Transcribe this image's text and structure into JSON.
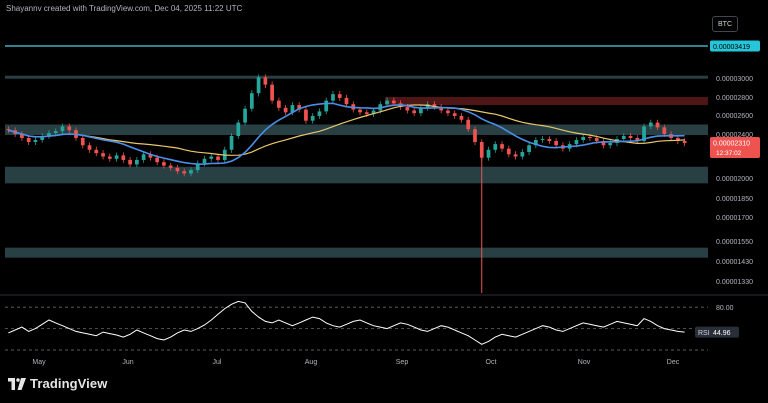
{
  "attribution": "Shayannv created with TradingView.com, Dec 04, 2025 11:22 UTC",
  "symbol": "BTC",
  "brand": {
    "name": "TradingView",
    "icon": "tradingview-logo-icon"
  },
  "colors": {
    "up": "#26a69a",
    "down": "#ef5350",
    "ma_fast": "#4a8fe8",
    "ma_slow": "#e8c66a",
    "resistance_line": "#4dd0e1",
    "zone": "#2f4a50",
    "supply_zone": "#5c1a1a",
    "rsi": "#ffffff",
    "last_price_bg": "#ef5350",
    "resistance_label_bg": "#26c6da"
  },
  "chart_data": [
    {
      "type": "candlestick",
      "x_labels": [
        "May",
        "Jun",
        "Jul",
        "Aug",
        "Sep",
        "Oct",
        "Nov",
        "Dec"
      ],
      "y_ticks": [
        "0.00003000",
        "0.00002800",
        "0.00002600",
        "0.00002400",
        "0.00002000",
        "0.00001850",
        "0.00001700",
        "0.00001550",
        "0.00001430",
        "0.00001330"
      ],
      "resistance_level": "0.00003419",
      "last_price": "0.00002310",
      "countdown": "12:37:02",
      "ohlc_close_sampled": [
        2.44e-05,
        2.4e-05,
        2.36e-05,
        2.32e-05,
        2.34e-05,
        2.38e-05,
        2.41e-05,
        2.43e-05,
        2.48e-05,
        2.44e-05,
        2.36e-05,
        2.29e-05,
        2.25e-05,
        2.22e-05,
        2.19e-05,
        2.17e-05,
        2.2e-05,
        2.16e-05,
        2.12e-05,
        2.16e-05,
        2.21e-05,
        2.18e-05,
        2.14e-05,
        2.11e-05,
        2.09e-05,
        2.06e-05,
        2.04e-05,
        2.07e-05,
        2.13e-05,
        2.17e-05,
        2.19e-05,
        2.16e-05,
        2.25e-05,
        2.38e-05,
        2.52e-05,
        2.67e-05,
        2.84e-05,
        3.01e-05,
        2.93e-05,
        2.76e-05,
        2.68e-05,
        2.63e-05,
        2.71e-05,
        2.66e-05,
        2.54e-05,
        2.59e-05,
        2.64e-05,
        2.76e-05,
        2.83e-05,
        2.79e-05,
        2.72e-05,
        2.66e-05,
        2.63e-05,
        2.61e-05,
        2.65e-05,
        2.72e-05,
        2.76e-05,
        2.73e-05,
        2.69e-05,
        2.65e-05,
        2.62e-05,
        2.68e-05,
        2.72e-05,
        2.69e-05,
        2.65e-05,
        2.62e-05,
        2.59e-05,
        2.55e-05,
        2.45e-05,
        2.32e-05,
        2.18e-05,
        2.25e-05,
        2.3e-05,
        2.26e-05,
        2.21e-05,
        2.19e-05,
        2.23e-05,
        2.29e-05,
        2.34e-05,
        2.35e-05,
        2.33e-05,
        2.29e-05,
        2.26e-05,
        2.3e-05,
        2.34e-05,
        2.37e-05,
        2.36e-05,
        2.33e-05,
        2.29e-05,
        2.31e-05,
        2.35e-05,
        2.38e-05,
        2.36e-05,
        2.33e-05,
        2.48e-05,
        2.52e-05,
        2.47e-05,
        2.4e-05,
        2.36e-05,
        2.33e-05,
        2.31e-05
      ],
      "wick_low_oct": "0.00001330",
      "zones": [
        {
          "name": "top-band",
          "from": 3e-05,
          "to": 3.03e-05
        },
        {
          "name": "supply-zone",
          "from": 2.71e-05,
          "to": 2.8e-05
        },
        {
          "name": "mid-band",
          "from": 2.39e-05,
          "to": 2.5e-05
        },
        {
          "name": "support-band",
          "from": 1.96e-05,
          "to": 2.1e-05
        },
        {
          "name": "low-band",
          "from": 1.45e-05,
          "to": 1.51e-05
        }
      ]
    },
    {
      "type": "line",
      "name": "RSI",
      "y_tick": "80.00",
      "value_label": "44.96",
      "value_tag": "RSI",
      "values": [
        44,
        48,
        52,
        46,
        50,
        56,
        62,
        58,
        54,
        50,
        46,
        44,
        42,
        40,
        45,
        43,
        41,
        38,
        42,
        48,
        44,
        40,
        36,
        34,
        38,
        44,
        48,
        46,
        50,
        55,
        62,
        70,
        78,
        84,
        88,
        86,
        74,
        66,
        60,
        58,
        62,
        58,
        54,
        58,
        62,
        66,
        64,
        58,
        54,
        52,
        56,
        60,
        62,
        58,
        54,
        52,
        50,
        54,
        58,
        56,
        52,
        48,
        46,
        50,
        54,
        52,
        48,
        44,
        40,
        34,
        28,
        32,
        38,
        42,
        40,
        38,
        42,
        46,
        50,
        54,
        52,
        48,
        46,
        50,
        54,
        58,
        56,
        54,
        52,
        56,
        60,
        58,
        56,
        54,
        64,
        60,
        54,
        50,
        48,
        46,
        45
      ]
    }
  ]
}
